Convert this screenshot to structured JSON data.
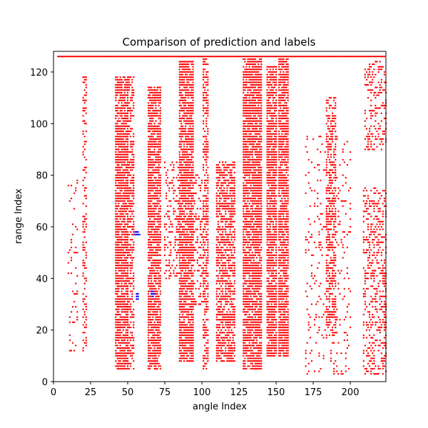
{
  "chart_data": {
    "type": "scatter",
    "title": "Comparison of prediction and labels",
    "xlabel": "angle Index",
    "ylabel": "range Index",
    "xlim": [
      0,
      224
    ],
    "ylim": [
      0,
      128
    ],
    "x_ticks": [
      0,
      25,
      50,
      75,
      100,
      125,
      150,
      175,
      200
    ],
    "y_ticks": [
      0,
      20,
      40,
      60,
      80,
      100,
      120
    ],
    "grid": false,
    "legend": "none",
    "series": [
      {
        "color": "#ff0000",
        "marker_size": 1.2,
        "runs": [
          {
            "x": [
              3,
              223
            ],
            "y": [
              126,
              126
            ],
            "density": 1.0
          },
          {
            "x": [
              42,
              50
            ],
            "y": [
              5,
              118
            ],
            "density": 0.85
          },
          {
            "x": [
              50,
              54
            ],
            "y": [
              5,
              118
            ],
            "density": 0.55
          },
          {
            "x": [
              64,
              72
            ],
            "y": [
              5,
              114
            ],
            "density": 0.85
          },
          {
            "x": [
              85,
              94
            ],
            "y": [
              8,
              124
            ],
            "density": 0.85
          },
          {
            "x": [
              101,
              104
            ],
            "y": [
              5,
              125
            ],
            "density": 0.6
          },
          {
            "x": [
              110,
              122
            ],
            "y": [
              8,
              85
            ],
            "density": 0.7
          },
          {
            "x": [
              128,
              140
            ],
            "y": [
              5,
              125
            ],
            "density": 0.85
          },
          {
            "x": [
              144,
              150
            ],
            "y": [
              10,
              122
            ],
            "density": 0.85
          },
          {
            "x": [
              152,
              158
            ],
            "y": [
              10,
              125
            ],
            "density": 0.85
          },
          {
            "x": [
              20,
              22
            ],
            "y": [
              12,
              118
            ],
            "density": 0.4
          },
          {
            "x": [
              184,
              190
            ],
            "y": [
              18,
              110
            ],
            "density": 0.55
          },
          {
            "x": [
              209,
              224
            ],
            "y": [
              3,
              75
            ],
            "density": 0.35
          },
          {
            "x": [
              10,
              16
            ],
            "y": [
              12,
              80
            ],
            "density": 0.12
          },
          {
            "x": [
              170,
              200
            ],
            "y": [
              3,
              95
            ],
            "density": 0.1
          },
          {
            "x": [
              210,
              224
            ],
            "y": [
              90,
              124
            ],
            "density": 0.3
          },
          {
            "x": [
              75,
              84
            ],
            "y": [
              40,
              85
            ],
            "density": 0.3
          },
          {
            "x": [
              95,
              100
            ],
            "y": [
              30,
              80
            ],
            "density": 0.3
          }
        ]
      },
      {
        "color": "#0000ff",
        "marker_size": 1.2,
        "points": [
          [
            55,
            57
          ],
          [
            56,
            57
          ],
          [
            57,
            57
          ],
          [
            55,
            58
          ],
          [
            56,
            58
          ],
          [
            57,
            58
          ],
          [
            58,
            57
          ],
          [
            56,
            32
          ],
          [
            57,
            32
          ],
          [
            56,
            33
          ],
          [
            57,
            33
          ],
          [
            56,
            34
          ],
          [
            57,
            34
          ],
          [
            66,
            34
          ],
          [
            67,
            34
          ],
          [
            66,
            35
          ],
          [
            67,
            35
          ],
          [
            68,
            34
          ],
          [
            67,
            33
          ]
        ]
      }
    ]
  }
}
